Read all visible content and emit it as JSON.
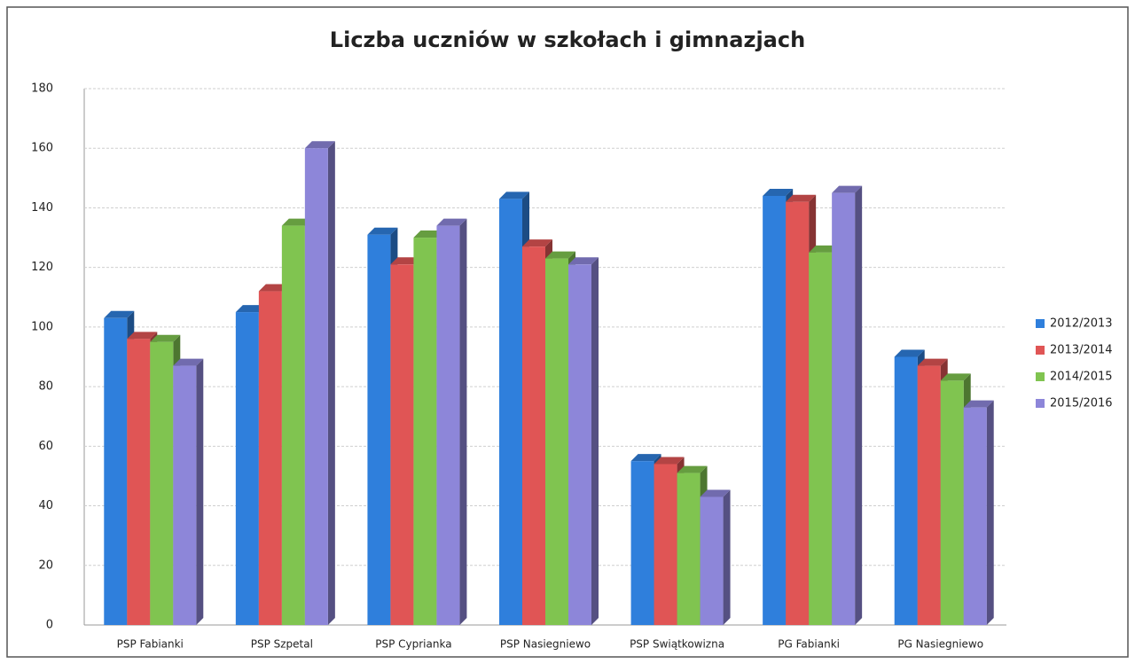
{
  "chart_data": {
    "type": "bar",
    "title": "Liczba uczniów w szkołach i gimnazjach",
    "categories": [
      "PSP Fabianki",
      "PSP Szpetal",
      "PSP Cyprianka",
      "PSP Nasiegniewo",
      "PSP Swiątkowizna",
      "PG Fabianki",
      "PG Nasiegniewo"
    ],
    "series": [
      {
        "name": "2012/2013",
        "color": "#2f7fdc",
        "values": [
          103,
          105,
          131,
          143,
          55,
          144,
          90
        ]
      },
      {
        "name": "2013/2014",
        "color": "#e05555",
        "values": [
          96,
          112,
          121,
          127,
          54,
          142,
          87
        ]
      },
      {
        "name": "2014/2015",
        "color": "#80c450",
        "values": [
          95,
          134,
          130,
          123,
          51,
          125,
          82
        ]
      },
      {
        "name": "2015/2016",
        "color": "#8d86d9",
        "values": [
          87,
          160,
          134,
          121,
          43,
          145,
          73
        ]
      }
    ],
    "ylim": [
      0,
      180
    ],
    "yticks": [
      0,
      20,
      40,
      60,
      80,
      100,
      120,
      140,
      160,
      180
    ],
    "grid": true,
    "legend": "right"
  }
}
